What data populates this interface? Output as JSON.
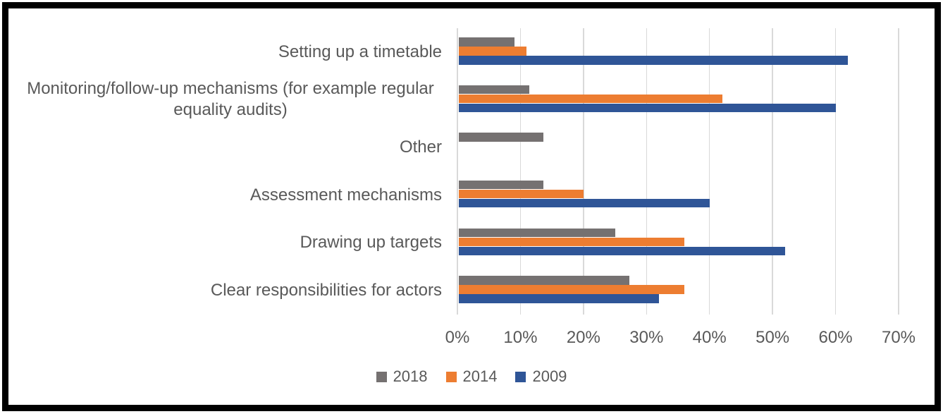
{
  "figure": {
    "border_color": "#000000",
    "background_color": "#ffffff"
  },
  "chart_data": {
    "type": "bar",
    "orientation": "horizontal",
    "title": "",
    "xlabel": "",
    "ylabel": "",
    "xlim": [
      0,
      70
    ],
    "x_tick_labels": [
      "0%",
      "10%",
      "20%",
      "30%",
      "40%",
      "50%",
      "60%",
      "70%"
    ],
    "grid": "vertical-major",
    "gridline_color": "#d9d9d9",
    "axis_text_color": "#595959",
    "legend_position": "bottom",
    "categories": [
      "Setting up a timetable",
      "Monitoring/follow-up mechanisms (for example regular equality audits)",
      "Other",
      "Assessment mechanisms",
      "Drawing up targets",
      "Clear responsibilities for actors"
    ],
    "series": [
      {
        "name": "2018",
        "color": "#757171",
        "values": [
          9.1,
          11.4,
          13.6,
          13.6,
          25,
          27.3
        ]
      },
      {
        "name": "2014",
        "color": "#ed7d31",
        "values": [
          11,
          42,
          null,
          20,
          36,
          36
        ]
      },
      {
        "name": "2009",
        "color": "#2f5597",
        "values": [
          62,
          60,
          null,
          40,
          52,
          32
        ]
      }
    ]
  }
}
